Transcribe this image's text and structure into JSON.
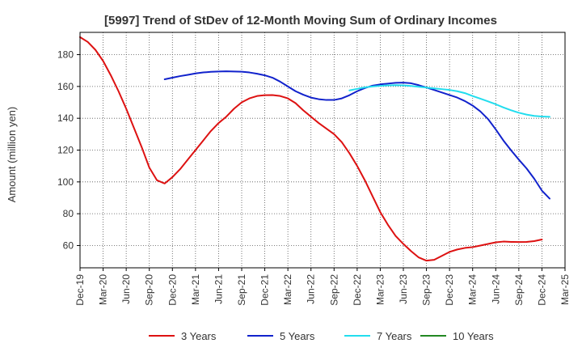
{
  "chart_data": {
    "type": "line",
    "title": "[5997]  Trend of StDev of 12-Month Moving Sum of Ordinary Incomes",
    "ylabel": "Amount (million yen)",
    "xlabel": "",
    "x_ticks": [
      "Dec-19",
      "Mar-20",
      "Jun-20",
      "Sep-20",
      "Dec-20",
      "Mar-21",
      "Jun-21",
      "Sep-21",
      "Dec-21",
      "Mar-22",
      "Jun-22",
      "Sep-22",
      "Dec-22",
      "Mar-23",
      "Jun-23",
      "Sep-23",
      "Dec-23",
      "Mar-24",
      "Jun-24",
      "Sep-24",
      "Dec-24",
      "Mar-25"
    ],
    "y_ticks": [
      60,
      80,
      100,
      120,
      140,
      160,
      180
    ],
    "ylim": [
      46,
      194
    ],
    "xlim": [
      "Dec-19",
      "Mar-25"
    ],
    "grid": true,
    "legend_position": "bottom",
    "series": [
      {
        "name": "3 Years",
        "color": "#dd1111",
        "points": [
          [
            "Dec-19",
            191
          ],
          [
            "Jan-20",
            188
          ],
          [
            "Feb-20",
            183
          ],
          [
            "Mar-20",
            176
          ],
          [
            "Apr-20",
            167
          ],
          [
            "May-20",
            157
          ],
          [
            "Jun-20",
            146
          ],
          [
            "Jul-20",
            134
          ],
          [
            "Aug-20",
            122
          ],
          [
            "Sep-20",
            109
          ],
          [
            "Oct-20",
            101
          ],
          [
            "Nov-20",
            99
          ],
          [
            "Dec-20",
            103
          ],
          [
            "Jan-21",
            108
          ],
          [
            "Feb-21",
            114
          ],
          [
            "Mar-21",
            120
          ],
          [
            "Apr-21",
            126
          ],
          [
            "May-21",
            132
          ],
          [
            "Jun-21",
            137
          ],
          [
            "Jul-21",
            141
          ],
          [
            "Aug-21",
            146
          ],
          [
            "Sep-21",
            150
          ],
          [
            "Oct-21",
            152.5
          ],
          [
            "Nov-21",
            154
          ],
          [
            "Dec-21",
            154.5
          ],
          [
            "Jan-22",
            154.6
          ],
          [
            "Feb-22",
            154
          ],
          [
            "Mar-22",
            152.5
          ],
          [
            "Apr-22",
            149.5
          ],
          [
            "May-22",
            145
          ],
          [
            "Jun-22",
            141
          ],
          [
            "Jul-22",
            137
          ],
          [
            "Aug-22",
            133.5
          ],
          [
            "Sep-22",
            130
          ],
          [
            "Oct-22",
            125
          ],
          [
            "Nov-22",
            118
          ],
          [
            "Dec-22",
            110
          ],
          [
            "Jan-23",
            101
          ],
          [
            "Feb-23",
            91
          ],
          [
            "Mar-23",
            81
          ],
          [
            "Apr-23",
            73
          ],
          [
            "May-23",
            66
          ],
          [
            "Jun-23",
            61
          ],
          [
            "Jul-23",
            56.5
          ],
          [
            "Aug-23",
            52.5
          ],
          [
            "Sep-23",
            50.5
          ],
          [
            "Oct-23",
            51
          ],
          [
            "Nov-23",
            53.5
          ],
          [
            "Dec-23",
            56
          ],
          [
            "Jan-24",
            57.5
          ],
          [
            "Feb-24",
            58.5
          ],
          [
            "Mar-24",
            59
          ],
          [
            "Apr-24",
            60
          ],
          [
            "May-24",
            61
          ],
          [
            "Jun-24",
            62
          ],
          [
            "Jul-24",
            62.5
          ],
          [
            "Aug-24",
            62.3
          ],
          [
            "Sep-24",
            62.2
          ],
          [
            "Oct-24",
            62.3
          ],
          [
            "Nov-24",
            62.8
          ],
          [
            "Dec-24",
            63.8
          ]
        ]
      },
      {
        "name": "5 Years",
        "color": "#1122cc",
        "points": [
          [
            "Nov-20",
            164.5
          ],
          [
            "Dec-20",
            165.5
          ],
          [
            "Jan-21",
            166.5
          ],
          [
            "Feb-21",
            167.3
          ],
          [
            "Mar-21",
            168.2
          ],
          [
            "Apr-21",
            168.8
          ],
          [
            "May-21",
            169.2
          ],
          [
            "Jun-21",
            169.4
          ],
          [
            "Jul-21",
            169.5
          ],
          [
            "Aug-21",
            169.4
          ],
          [
            "Sep-21",
            169.3
          ],
          [
            "Oct-21",
            168.8
          ],
          [
            "Nov-21",
            168
          ],
          [
            "Dec-21",
            167
          ],
          [
            "Jan-22",
            165.5
          ],
          [
            "Feb-22",
            163
          ],
          [
            "Mar-22",
            160
          ],
          [
            "Apr-22",
            157
          ],
          [
            "May-22",
            154.8
          ],
          [
            "Jun-22",
            153
          ],
          [
            "Jul-22",
            152
          ],
          [
            "Aug-22",
            151.5
          ],
          [
            "Sep-22",
            151.5
          ],
          [
            "Oct-22",
            152.5
          ],
          [
            "Nov-22",
            154.5
          ],
          [
            "Dec-22",
            157
          ],
          [
            "Jan-23",
            159
          ],
          [
            "Feb-23",
            160.5
          ],
          [
            "Mar-23",
            161.3
          ],
          [
            "Apr-23",
            161.8
          ],
          [
            "May-23",
            162.3
          ],
          [
            "Jun-23",
            162.4
          ],
          [
            "Jul-23",
            162
          ],
          [
            "Aug-23",
            160.8
          ],
          [
            "Sep-23",
            159.3
          ],
          [
            "Oct-23",
            157.8
          ],
          [
            "Nov-23",
            156.2
          ],
          [
            "Dec-23",
            154.6
          ],
          [
            "Jan-24",
            153
          ],
          [
            "Feb-24",
            150.8
          ],
          [
            "Mar-24",
            148
          ],
          [
            "Apr-24",
            144.3
          ],
          [
            "May-24",
            139.5
          ],
          [
            "Jun-24",
            133
          ],
          [
            "Jul-24",
            126
          ],
          [
            "Aug-24",
            119.8
          ],
          [
            "Sep-24",
            114
          ],
          [
            "Oct-24",
            108.5
          ],
          [
            "Nov-24",
            102
          ],
          [
            "Dec-24",
            94.5
          ],
          [
            "Jan-25",
            89.5
          ]
        ]
      },
      {
        "name": "7 Years",
        "color": "#22ddee",
        "points": [
          [
            "Nov-22",
            157.5
          ],
          [
            "Dec-22",
            158.5
          ],
          [
            "Jan-23",
            159.4
          ],
          [
            "Feb-23",
            160
          ],
          [
            "Mar-23",
            160.4
          ],
          [
            "Apr-23",
            160.7
          ],
          [
            "May-23",
            160.8
          ],
          [
            "Jun-23",
            160.7
          ],
          [
            "Jul-23",
            160.3
          ],
          [
            "Aug-23",
            159.8
          ],
          [
            "Sep-23",
            159.3
          ],
          [
            "Oct-23",
            158.8
          ],
          [
            "Nov-23",
            158.3
          ],
          [
            "Dec-23",
            157.8
          ],
          [
            "Jan-24",
            157
          ],
          [
            "Feb-24",
            155.8
          ],
          [
            "Mar-24",
            154
          ],
          [
            "Apr-24",
            152.3
          ],
          [
            "May-24",
            150.6
          ],
          [
            "Jun-24",
            148.8
          ],
          [
            "Jul-24",
            146.8
          ],
          [
            "Aug-24",
            145
          ],
          [
            "Sep-24",
            143.5
          ],
          [
            "Oct-24",
            142.3
          ],
          [
            "Nov-24",
            141.5
          ],
          [
            "Dec-24",
            141.1
          ],
          [
            "Jan-25",
            140.9
          ]
        ]
      },
      {
        "name": "10 Years",
        "color": "#228822",
        "points": []
      }
    ]
  }
}
